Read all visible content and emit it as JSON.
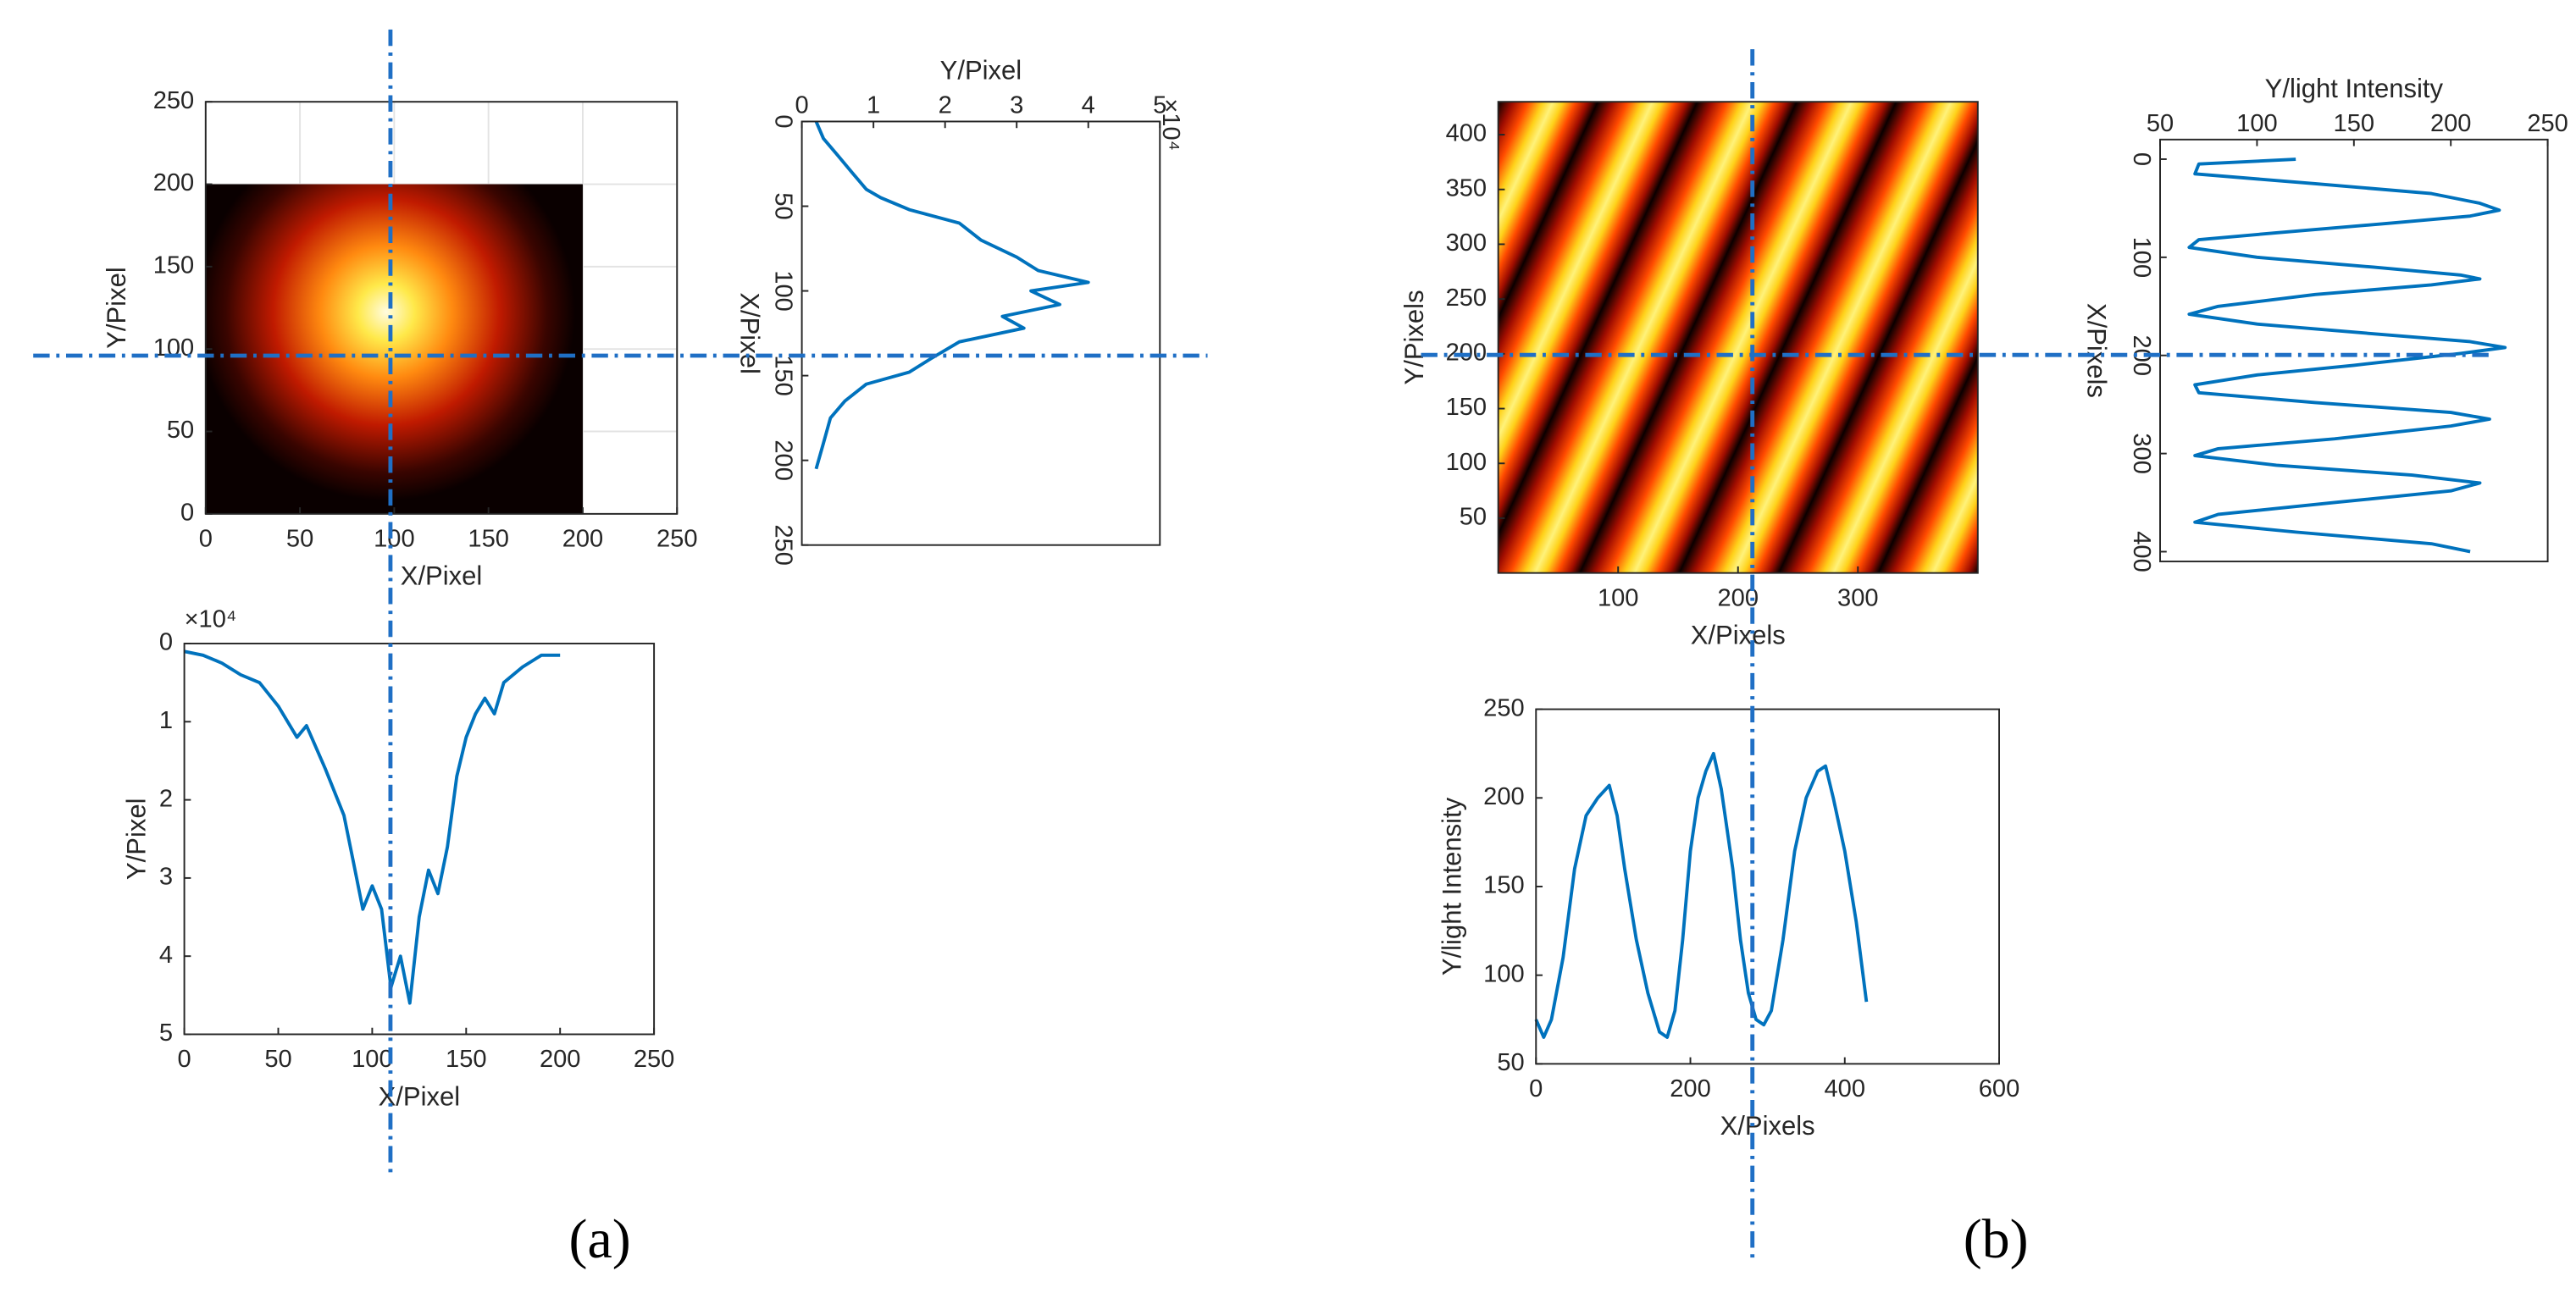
{
  "chart_data": [
    {
      "type": "heatmap",
      "xlim": [
        0,
        250
      ],
      "ylim": [
        0,
        250
      ],
      "xticks": [
        0,
        50,
        100,
        150,
        200,
        250
      ],
      "yticks": [
        0,
        50,
        100,
        150,
        200,
        250
      ],
      "xlabel": "X/Pixel",
      "ylabel": "Y/Pixel",
      "grid": true,
      "extent": [
        0,
        200,
        0,
        200
      ],
      "crosshair": {
        "x": 98,
        "y": 96
      },
      "crosshair_color": "#1f6fc5",
      "panel_label": "(a)"
    },
    {
      "type": "line",
      "orientation": "vertical",
      "color": "#0072bd",
      "xlim": [
        0,
        5
      ],
      "xticks": [
        0,
        1,
        2,
        3,
        4,
        5
      ],
      "x_axis_position": "top",
      "xlabel": "Y/Pixel",
      "x_exponent_label": "×10⁴",
      "ylim": [
        0,
        250
      ],
      "yticks": [
        0,
        50,
        100,
        150,
        200,
        250
      ],
      "y_reversed": true,
      "ylabel": "X/Pixel",
      "ylabel_rotation": 90,
      "ytick_rotation": 90,
      "y": [
        0,
        10,
        20,
        30,
        40,
        45,
        52,
        60,
        70,
        80,
        88,
        95,
        100,
        108,
        115,
        122,
        130,
        140,
        148,
        155,
        165,
        175,
        190,
        205
      ],
      "values": [
        0.2,
        0.3,
        0.5,
        0.7,
        0.9,
        1.1,
        1.5,
        2.2,
        2.5,
        3.0,
        3.3,
        4.0,
        3.2,
        3.6,
        2.8,
        3.1,
        2.2,
        1.8,
        1.5,
        0.9,
        0.6,
        0.4,
        0.3,
        0.2
      ]
    },
    {
      "type": "line",
      "color": "#0072bd",
      "xlim": [
        0,
        250
      ],
      "xticks": [
        0,
        50,
        100,
        150,
        200,
        250
      ],
      "xlabel": "X/Pixel",
      "ylim": [
        0,
        5
      ],
      "yticks": [
        0,
        1,
        2,
        3,
        4,
        5
      ],
      "y_reversed": true,
      "ylabel": "Y/Pixel",
      "y_exponent_label": "×10⁴",
      "x": [
        0,
        10,
        20,
        30,
        40,
        50,
        60,
        65,
        75,
        85,
        90,
        95,
        100,
        105,
        110,
        115,
        120,
        125,
        130,
        135,
        140,
        145,
        150,
        155,
        160,
        165,
        170,
        180,
        190,
        200
      ],
      "values": [
        0.1,
        0.15,
        0.25,
        0.4,
        0.5,
        0.8,
        1.2,
        1.05,
        1.6,
        2.2,
        2.8,
        3.4,
        3.1,
        3.4,
        4.4,
        4.0,
        4.6,
        3.5,
        2.9,
        3.2,
        2.6,
        1.7,
        1.2,
        0.9,
        0.7,
        0.9,
        0.5,
        0.3,
        0.15,
        0.15
      ]
    },
    {
      "type": "heatmap",
      "xlim": [
        0,
        400
      ],
      "ylim": [
        0,
        430
      ],
      "xticks": [
        100,
        200,
        300
      ],
      "yticks": [
        50,
        100,
        150,
        200,
        250,
        300,
        350,
        400
      ],
      "xlabel": "X/Pixels",
      "ylabel": "Y/Pixels",
      "grid": false,
      "extent": [
        0,
        400,
        0,
        430
      ],
      "crosshair": {
        "x": 212,
        "y": 199
      },
      "crosshair_color": "#1f6fc5",
      "panel_label": "(b)"
    },
    {
      "type": "line",
      "orientation": "vertical",
      "color": "#0072bd",
      "xlim": [
        50,
        250
      ],
      "xticks": [
        50,
        100,
        150,
        200,
        250
      ],
      "x_axis_position": "top",
      "xlabel": "Y/light Intensity",
      "ylim": [
        -20,
        410
      ],
      "yticks": [
        0,
        100,
        200,
        300,
        400
      ],
      "y_reversed": true,
      "ylabel": "X/Pixels",
      "ylabel_rotation": 90,
      "ytick_rotation": 90,
      "y": [
        0,
        5,
        15,
        25,
        35,
        45,
        52,
        58,
        65,
        75,
        82,
        90,
        100,
        110,
        118,
        122,
        128,
        138,
        150,
        158,
        168,
        178,
        186,
        192,
        198,
        210,
        220,
        230,
        238,
        248,
        258,
        265,
        272,
        285,
        295,
        302,
        312,
        322,
        330,
        338,
        350,
        362,
        370,
        380,
        392,
        400
      ],
      "values": [
        120,
        70,
        68,
        130,
        190,
        215,
        225,
        210,
        170,
        110,
        70,
        65,
        100,
        160,
        205,
        215,
        190,
        130,
        80,
        65,
        100,
        160,
        210,
        228,
        205,
        150,
        100,
        68,
        70,
        130,
        200,
        220,
        200,
        140,
        80,
        68,
        110,
        180,
        215,
        200,
        140,
        80,
        68,
        120,
        190,
        210
      ]
    },
    {
      "type": "line",
      "color": "#0072bd",
      "xlim": [
        0,
        600
      ],
      "xticks": [
        0,
        200,
        400,
        600
      ],
      "xlabel": "X/Pixels",
      "ylim": [
        50,
        250
      ],
      "yticks": [
        50,
        100,
        150,
        200,
        250
      ],
      "ylabel": "Y/light Intensity",
      "x": [
        0,
        10,
        20,
        35,
        50,
        65,
        80,
        95,
        105,
        115,
        130,
        145,
        160,
        170,
        180,
        190,
        200,
        210,
        220,
        230,
        240,
        255,
        265,
        275,
        285,
        295,
        305,
        320,
        335,
        350,
        365,
        375,
        385,
        400,
        415,
        428
      ],
      "values": [
        75,
        65,
        75,
        110,
        160,
        190,
        200,
        207,
        190,
        160,
        120,
        90,
        68,
        65,
        80,
        120,
        170,
        200,
        215,
        225,
        205,
        160,
        120,
        90,
        75,
        72,
        80,
        120,
        170,
        200,
        215,
        218,
        200,
        170,
        130,
        85
      ]
    }
  ]
}
